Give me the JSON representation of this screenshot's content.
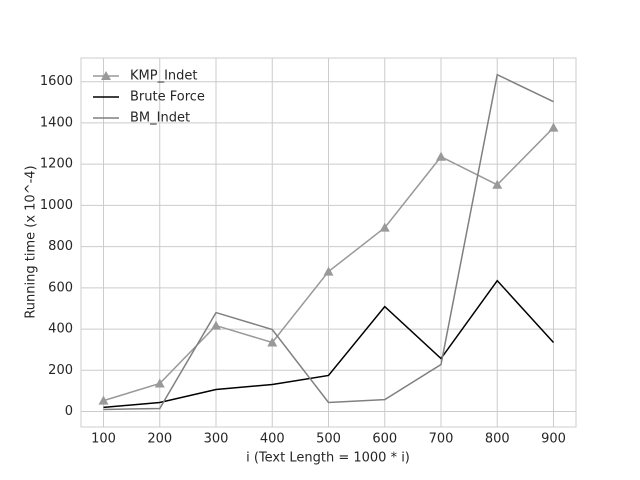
{
  "chart_data": {
    "type": "line",
    "xlabel": "i (Text Length = 1000 * i)",
    "ylabel": "Running time (x 10^-4)",
    "x": [
      100,
      200,
      300,
      400,
      500,
      600,
      700,
      800,
      900
    ],
    "series": [
      {
        "name": "KMP_Indet",
        "color": "#999999",
        "marker": "triangle",
        "values": [
          53,
          136,
          417,
          335,
          679,
          892,
          1236,
          1100,
          1377
        ]
      },
      {
        "name": "Brute Force",
        "color": "#000000",
        "values": [
          20,
          44,
          107,
          131,
          175,
          509,
          257,
          635,
          335
        ]
      },
      {
        "name": "BM_Indet",
        "color": "#808080",
        "values": [
          10,
          15,
          480,
          398,
          44,
          58,
          228,
          1634,
          1503
        ]
      }
    ],
    "xlim": [
      60,
      940
    ],
    "ylim": [
      -75,
      1715
    ],
    "xticks": [
      100,
      200,
      300,
      400,
      500,
      600,
      700,
      800,
      900
    ],
    "yticks": [
      0,
      200,
      400,
      600,
      800,
      1000,
      1200,
      1400,
      1600
    ],
    "grid": true,
    "legend": "upper left"
  }
}
